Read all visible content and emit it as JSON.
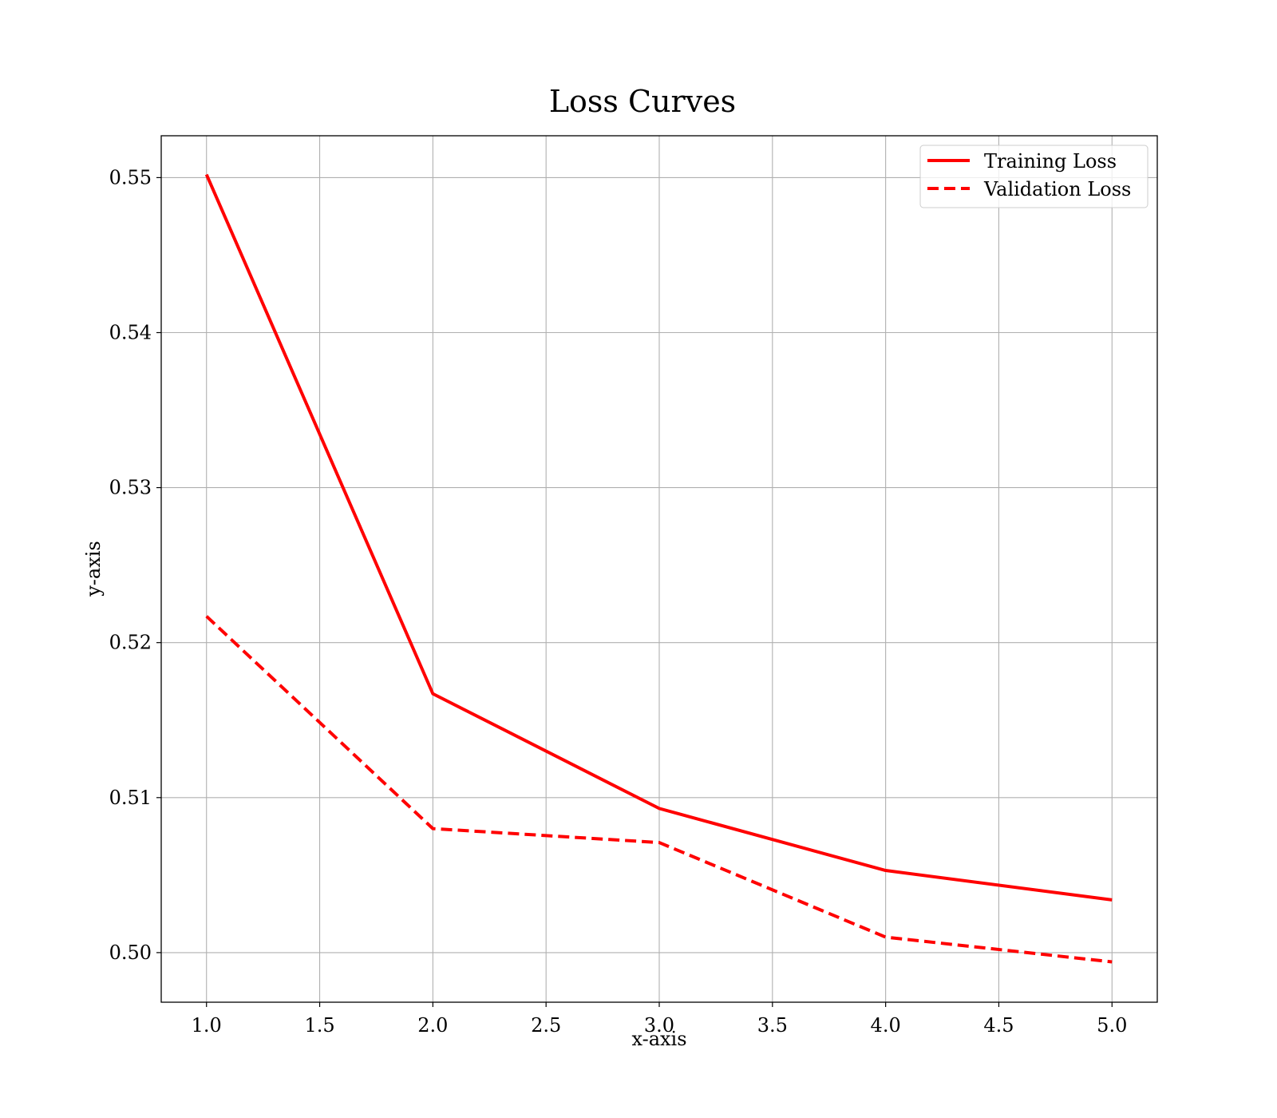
{
  "chart_data": {
    "type": "line",
    "title": "Loss Curves",
    "xlabel": "x-axis",
    "ylabel": "y-axis",
    "x": [
      1,
      2,
      3,
      4,
      5
    ],
    "xlim": [
      0.8,
      5.2
    ],
    "ylim": [
      0.4968,
      0.5527
    ],
    "xticks": [
      1.0,
      1.5,
      2.0,
      2.5,
      3.0,
      3.5,
      4.0,
      4.5,
      5.0
    ],
    "xtick_labels": [
      "1.0",
      "1.5",
      "2.0",
      "2.5",
      "3.0",
      "3.5",
      "4.0",
      "4.5",
      "5.0"
    ],
    "yticks": [
      0.5,
      0.51,
      0.52,
      0.53,
      0.54,
      0.55
    ],
    "ytick_labels": [
      "0.50",
      "0.51",
      "0.52",
      "0.53",
      "0.54",
      "0.55"
    ],
    "grid": true,
    "legend_position": "top-right",
    "series": [
      {
        "name": "Training Loss",
        "values": [
          0.5502,
          0.5167,
          0.5093,
          0.5053,
          0.5034
        ],
        "color": "#ff0000",
        "line_style": "solid"
      },
      {
        "name": "Validation Loss",
        "values": [
          0.5217,
          0.508,
          0.5071,
          0.501,
          0.4994
        ],
        "color": "#ff0000",
        "line_style": "dashed"
      }
    ]
  }
}
